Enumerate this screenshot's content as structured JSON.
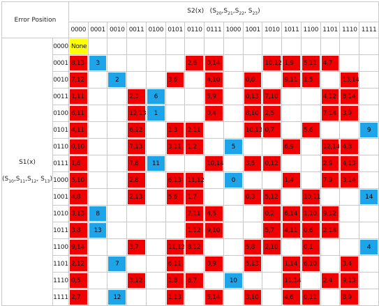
{
  "header": {
    "corner_label": "Error Position",
    "s2_label": "S2(x)",
    "s2_symbols": [
      "S",
      "20",
      "S",
      "21",
      "S",
      "22",
      "S",
      "23"
    ],
    "s1_label": "S1(x)",
    "s1_symbols": [
      "S",
      "10",
      "S",
      "11",
      "S",
      "12",
      "S",
      "13"
    ]
  },
  "columns": [
    "0000",
    "0001",
    "0010",
    "0011",
    "0100",
    "0101",
    "0110",
    "0111",
    "1000",
    "1001",
    "1010",
    "1011",
    "1100",
    "1101",
    "1110",
    "1111"
  ],
  "rows": [
    {
      "label": "0000",
      "cells": [
        {
          "c": 0,
          "t": "None",
          "k": "yellow"
        }
      ]
    },
    {
      "label": "0001",
      "cells": [
        {
          "c": 0,
          "t": "8,13",
          "k": "red"
        },
        {
          "c": 1,
          "t": "3",
          "k": "blue"
        },
        {
          "c": 6,
          "t": "2,6",
          "k": "red"
        },
        {
          "c": 7,
          "t": "0,14",
          "k": "red"
        },
        {
          "c": 10,
          "t": "10,12",
          "k": "red"
        },
        {
          "c": 11,
          "t": "1,9",
          "k": "red"
        },
        {
          "c": 12,
          "t": "5,11",
          "k": "red"
        },
        {
          "c": 13,
          "t": "4,7",
          "k": "red"
        }
      ]
    },
    {
      "label": "0010",
      "cells": [
        {
          "c": 0,
          "t": "7,12",
          "k": "red"
        },
        {
          "c": 2,
          "t": "2",
          "k": "blue"
        },
        {
          "c": 5,
          "t": "3,6",
          "k": "red"
        },
        {
          "c": 7,
          "t": "4,10",
          "k": "red"
        },
        {
          "c": 9,
          "t": "0,8",
          "k": "red"
        },
        {
          "c": 11,
          "t": "9,11",
          "k": "red"
        },
        {
          "c": 12,
          "t": "1,5",
          "k": "red"
        },
        {
          "c": 14,
          "t": "13,14",
          "k": "red"
        }
      ]
    },
    {
      "label": "0011",
      "cells": [
        {
          "c": 0,
          "t": "1,11",
          "k": "red"
        },
        {
          "c": 3,
          "t": "2,3",
          "k": "red"
        },
        {
          "c": 4,
          "t": "6",
          "k": "blue"
        },
        {
          "c": 7,
          "t": "5,9",
          "k": "red"
        },
        {
          "c": 9,
          "t": "0,13",
          "k": "red"
        },
        {
          "c": 10,
          "t": "7,10",
          "k": "red"
        },
        {
          "c": 13,
          "t": "4,12",
          "k": "red"
        },
        {
          "c": 14,
          "t": "8,14",
          "k": "red"
        }
      ]
    },
    {
      "label": "0100",
      "cells": [
        {
          "c": 0,
          "t": "6,11",
          "k": "red"
        },
        {
          "c": 3,
          "t": "12,13",
          "k": "red"
        },
        {
          "c": 4,
          "t": "1",
          "k": "blue"
        },
        {
          "c": 7,
          "t": "0,4",
          "k": "red"
        },
        {
          "c": 9,
          "t": "8,10",
          "k": "red"
        },
        {
          "c": 10,
          "t": "2,5",
          "k": "red"
        },
        {
          "c": 13,
          "t": "7,14",
          "k": "red"
        },
        {
          "c": 14,
          "t": "3,9",
          "k": "red"
        }
      ]
    },
    {
      "label": "0101",
      "cells": [
        {
          "c": 0,
          "t": "4,11",
          "k": "red"
        },
        {
          "c": 3,
          "t": "6,12",
          "k": "red"
        },
        {
          "c": 5,
          "t": "1,3",
          "k": "red"
        },
        {
          "c": 6,
          "t": "2,11",
          "k": "red"
        },
        {
          "c": 9,
          "t": "10,13",
          "k": "red"
        },
        {
          "c": 10,
          "t": "0,7",
          "k": "red"
        },
        {
          "c": 12,
          "t": "5,6",
          "k": "red"
        },
        {
          "c": 15,
          "t": "9",
          "k": "blue"
        }
      ]
    },
    {
      "label": "0110",
      "cells": [
        {
          "c": 0,
          "t": "0,10",
          "k": "red"
        },
        {
          "c": 3,
          "t": "7,13",
          "k": "red"
        },
        {
          "c": 5,
          "t": "3,11",
          "k": "red"
        },
        {
          "c": 6,
          "t": "1,2",
          "k": "red"
        },
        {
          "c": 8,
          "t": "5",
          "k": "blue"
        },
        {
          "c": 11,
          "t": "6,9",
          "k": "red"
        },
        {
          "c": 13,
          "t": "12,14",
          "k": "red"
        },
        {
          "c": 14,
          "t": "4,8",
          "k": "red"
        }
      ]
    },
    {
      "label": "0111",
      "cells": [
        {
          "c": 0,
          "t": "1,6",
          "k": "red"
        },
        {
          "c": 3,
          "t": "7,8",
          "k": "red"
        },
        {
          "c": 4,
          "t": "11",
          "k": "blue"
        },
        {
          "c": 7,
          "t": "10,14",
          "k": "red"
        },
        {
          "c": 9,
          "t": "3,5",
          "k": "red"
        },
        {
          "c": 10,
          "t": "0,12",
          "k": "red"
        },
        {
          "c": 13,
          "t": "2,9",
          "k": "red"
        },
        {
          "c": 14,
          "t": "4,13",
          "k": "red"
        }
      ]
    },
    {
      "label": "1000",
      "cells": [
        {
          "c": 0,
          "t": "5,10",
          "k": "red"
        },
        {
          "c": 3,
          "t": "2,8",
          "k": "red"
        },
        {
          "c": 5,
          "t": "6,13",
          "k": "red"
        },
        {
          "c": 6,
          "t": "11,12",
          "k": "red"
        },
        {
          "c": 8,
          "t": "0",
          "k": "blue"
        },
        {
          "c": 11,
          "t": "1,4",
          "k": "red"
        },
        {
          "c": 13,
          "t": "7,9",
          "k": "red"
        },
        {
          "c": 14,
          "t": "3,14",
          "k": "red"
        }
      ]
    },
    {
      "label": "1001",
      "cells": [
        {
          "c": 0,
          "t": "4,8",
          "k": "red"
        },
        {
          "c": 3,
          "t": "2,13",
          "k": "red"
        },
        {
          "c": 5,
          "t": "5,6",
          "k": "red"
        },
        {
          "c": 6,
          "t": "1,7",
          "k": "red"
        },
        {
          "c": 9,
          "t": "0,3",
          "k": "red"
        },
        {
          "c": 10,
          "t": "5,12",
          "k": "red"
        },
        {
          "c": 12,
          "t": "10,11",
          "k": "red"
        },
        {
          "c": 15,
          "t": "14",
          "k": "blue"
        }
      ]
    },
    {
      "label": "1010",
      "cells": [
        {
          "c": 0,
          "t": "3,13",
          "k": "red"
        },
        {
          "c": 1,
          "t": "8",
          "k": "blue"
        },
        {
          "c": 6,
          "t": "7,11",
          "k": "red"
        },
        {
          "c": 7,
          "t": "4,5",
          "k": "red"
        },
        {
          "c": 10,
          "t": "0,2",
          "k": "red"
        },
        {
          "c": 11,
          "t": "6,14",
          "k": "red"
        },
        {
          "c": 12,
          "t": "1,10",
          "k": "red"
        },
        {
          "c": 13,
          "t": "9,12",
          "k": "red"
        }
      ]
    },
    {
      "label": "1011",
      "cells": [
        {
          "c": 0,
          "t": "3,8",
          "k": "red"
        },
        {
          "c": 1,
          "t": "13",
          "k": "blue"
        },
        {
          "c": 6,
          "t": "1,12",
          "k": "red"
        },
        {
          "c": 7,
          "t": "9,10",
          "k": "red"
        },
        {
          "c": 10,
          "t": "5,7",
          "k": "red"
        },
        {
          "c": 11,
          "t": "4,11",
          "k": "red"
        },
        {
          "c": 12,
          "t": "0,6",
          "k": "red"
        },
        {
          "c": 13,
          "t": "2,14",
          "k": "red"
        }
      ]
    },
    {
      "label": "1100",
      "cells": [
        {
          "c": 0,
          "t": "9,14",
          "k": "red"
        },
        {
          "c": 3,
          "t": "3,7",
          "k": "red"
        },
        {
          "c": 5,
          "t": "11,13",
          "k": "red"
        },
        {
          "c": 6,
          "t": "8,12",
          "k": "red"
        },
        {
          "c": 9,
          "t": "5,8",
          "k": "red"
        },
        {
          "c": 10,
          "t": "2,10",
          "k": "red"
        },
        {
          "c": 12,
          "t": "0,1",
          "k": "red"
        },
        {
          "c": 15,
          "t": "4",
          "k": "blue"
        }
      ]
    },
    {
      "label": "1101",
      "cells": [
        {
          "c": 0,
          "t": "2,12",
          "k": "red"
        },
        {
          "c": 2,
          "t": "7",
          "k": "blue"
        },
        {
          "c": 5,
          "t": "6,11",
          "k": "red"
        },
        {
          "c": 7,
          "t": "0,9",
          "k": "red"
        },
        {
          "c": 9,
          "t": "5,13",
          "k": "red"
        },
        {
          "c": 11,
          "t": "1,14",
          "k": "red"
        },
        {
          "c": 12,
          "t": "6,10",
          "k": "red"
        },
        {
          "c": 14,
          "t": "3,4",
          "k": "red"
        }
      ]
    },
    {
      "label": "1110",
      "cells": [
        {
          "c": 0,
          "t": "0,5",
          "k": "red"
        },
        {
          "c": 3,
          "t": "3,12",
          "k": "red"
        },
        {
          "c": 5,
          "t": "1,8",
          "k": "red"
        },
        {
          "c": 6,
          "t": "6,7",
          "k": "red"
        },
        {
          "c": 8,
          "t": "10",
          "k": "blue"
        },
        {
          "c": 11,
          "t": "11,14",
          "k": "red"
        },
        {
          "c": 13,
          "t": "2,4",
          "k": "red"
        },
        {
          "c": 14,
          "t": "9,13",
          "k": "red"
        }
      ]
    },
    {
      "label": "1111",
      "cells": [
        {
          "c": 0,
          "t": "2,7",
          "k": "red"
        },
        {
          "c": 2,
          "t": "12",
          "k": "blue"
        },
        {
          "c": 5,
          "t": "1,13",
          "k": "red"
        },
        {
          "c": 7,
          "t": "5,14",
          "k": "red"
        },
        {
          "c": 9,
          "t": "3,10",
          "k": "red"
        },
        {
          "c": 11,
          "t": "4,6",
          "k": "red"
        },
        {
          "c": 12,
          "t": "0,11",
          "k": "red"
        },
        {
          "c": 14,
          "t": "8,9",
          "k": "red"
        }
      ]
    }
  ],
  "colors": {
    "error_pair": "#f00000",
    "single_error": "#1da4e9",
    "no_error": "#ffff00",
    "grid": "#c9c9c9"
  }
}
